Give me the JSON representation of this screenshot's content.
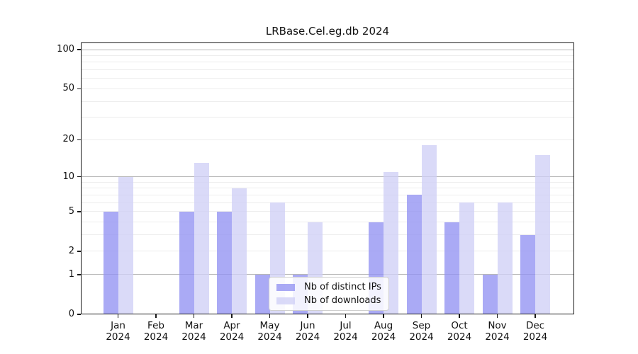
{
  "chart_data": {
    "type": "bar",
    "title": "LRBase.Cel.eg.db 2024",
    "categories": [
      "Jan",
      "Feb",
      "Mar",
      "Apr",
      "May",
      "Jun",
      "Jul",
      "Aug",
      "Sep",
      "Oct",
      "Nov",
      "Dec"
    ],
    "category_year": "2024",
    "series": [
      {
        "name": "Nb of distinct IPs",
        "color": "#aaaaf4",
        "fill": "rgba(146,146,242,0.78)",
        "values": [
          5,
          0,
          5,
          5,
          1,
          1,
          0,
          4,
          7,
          4,
          1,
          3
        ]
      },
      {
        "name": "Nb of downloads",
        "color": "#dadaf8",
        "fill": "rgba(208,208,246,0.78)",
        "values": [
          10,
          0,
          13,
          8,
          6,
          4,
          0,
          11,
          18,
          6,
          6,
          15
        ]
      }
    ],
    "xlabel": "",
    "ylabel": "",
    "y_axis": {
      "scale": "log1p",
      "ticks": [
        0,
        1,
        2,
        5,
        10,
        20,
        50,
        100
      ],
      "ylim": [
        0,
        100
      ]
    },
    "grid": {
      "major_values": [
        1,
        10,
        100
      ],
      "minor_values": [
        2,
        3,
        4,
        5,
        6,
        7,
        8,
        9,
        20,
        30,
        40,
        50,
        60,
        70,
        80,
        90
      ]
    },
    "legend": {
      "entries": [
        "Nb of distinct IPs",
        "Nb of downloads"
      ],
      "position": "lower center inside"
    }
  }
}
